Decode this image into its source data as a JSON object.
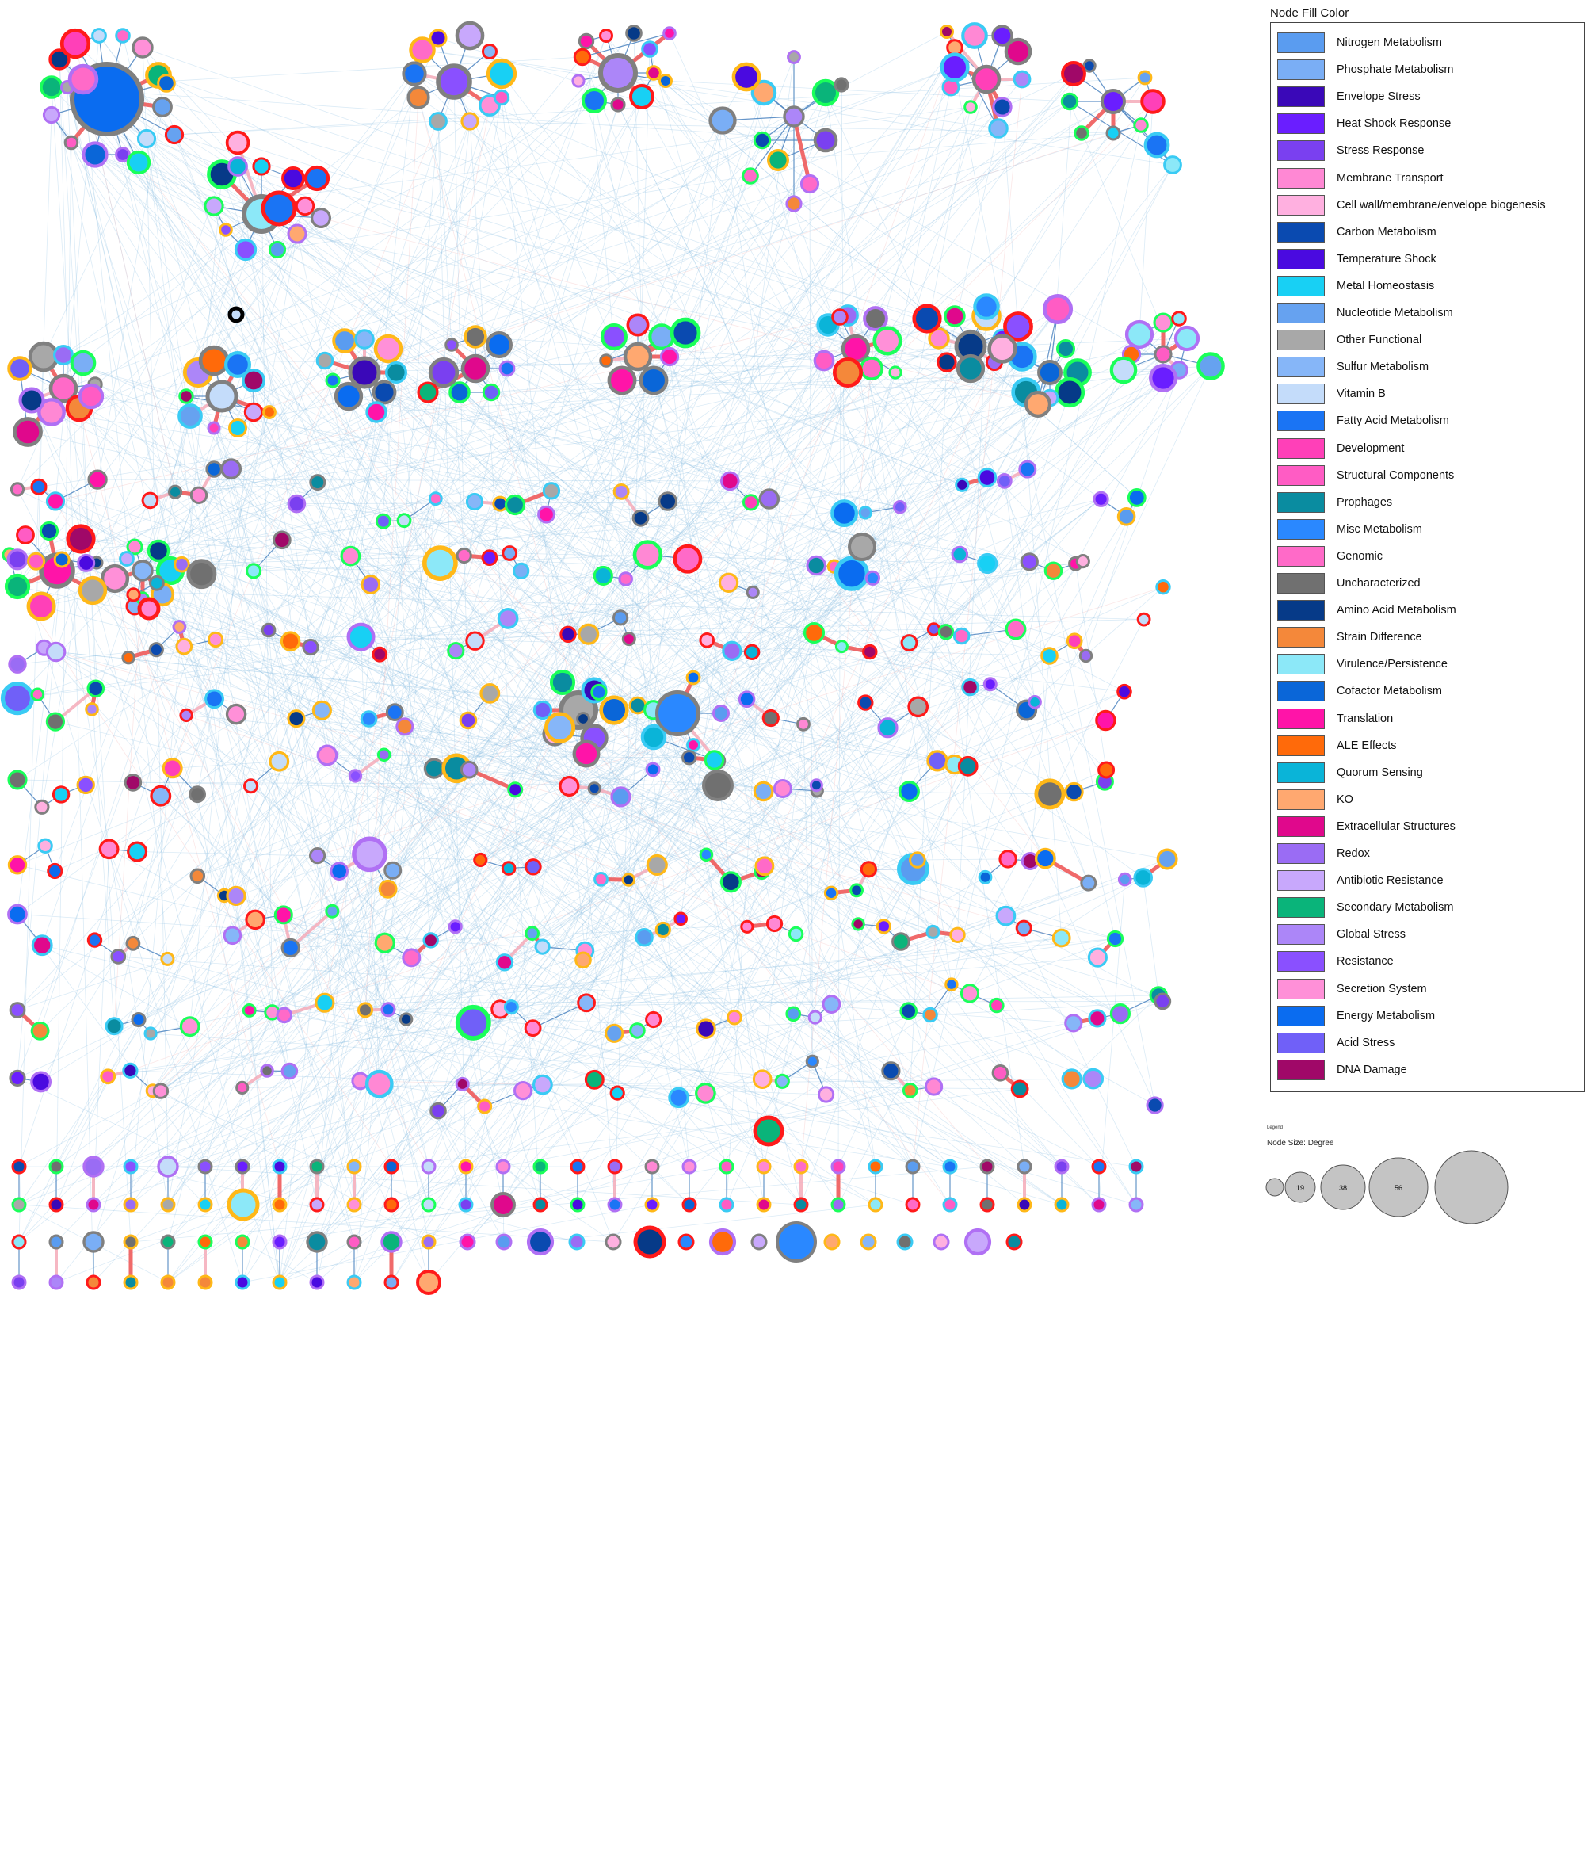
{
  "legend": {
    "title": "Node Fill Color",
    "items": [
      {
        "label": "Nitrogen Metabolism",
        "color": "#5a9cf0"
      },
      {
        "label": "Phosphate Metabolism",
        "color": "#7aaef5"
      },
      {
        "label": "Envelope Stress",
        "color": "#3a08b8"
      },
      {
        "label": "Heat Shock Response",
        "color": "#6a1eff"
      },
      {
        "label": "Stress Response",
        "color": "#7a40f0"
      },
      {
        "label": "Membrane Transport",
        "color": "#ff88d4"
      },
      {
        "label": "Cell wall/membrane/envelope biogenesis",
        "color": "#ffb0e0"
      },
      {
        "label": "Carbon Metabolism",
        "color": "#0a4ab0"
      },
      {
        "label": "Temperature Shock",
        "color": "#4a0ae0"
      },
      {
        "label": "Metal Homeostasis",
        "color": "#18d0f4"
      },
      {
        "label": "Nucleotide Metabolism",
        "color": "#66a2f0"
      },
      {
        "label": "Other Functional",
        "color": "#a8a8a8"
      },
      {
        "label": "Sulfur Metabolism",
        "color": "#86b6f8"
      },
      {
        "label": "Vitamin B",
        "color": "#c4dcfa"
      },
      {
        "label": "Fatty Acid Metabolism",
        "color": "#1a74f4"
      },
      {
        "label": "Development",
        "color": "#ff40b8"
      },
      {
        "label": "Structural Components",
        "color": "#ff5cc4"
      },
      {
        "label": "Prophages",
        "color": "#0a8ca0"
      },
      {
        "label": "Misc Metabolism",
        "color": "#2a88ff"
      },
      {
        "label": "Genomic",
        "color": "#ff6ac8"
      },
      {
        "label": "Uncharacterized",
        "color": "#707070"
      },
      {
        "label": "Amino Acid Metabolism",
        "color": "#063a88"
      },
      {
        "label": "Strain Difference",
        "color": "#f4883a"
      },
      {
        "label": "Virulence/Persistence",
        "color": "#8ce8f8"
      },
      {
        "label": "Cofactor Metabolism",
        "color": "#0a66d8"
      },
      {
        "label": "Translation",
        "color": "#ff14a8"
      },
      {
        "label": "ALE Effects",
        "color": "#ff6a0a"
      },
      {
        "label": "Quorum Sensing",
        "color": "#0ab4d8"
      },
      {
        "label": "KO",
        "color": "#ffa870"
      },
      {
        "label": "Extracellular Structures",
        "color": "#e0088c"
      },
      {
        "label": "Redox",
        "color": "#9a6cf4"
      },
      {
        "label": "Antibiotic Resistance",
        "color": "#c8a8fc"
      },
      {
        "label": "Secondary Metabolism",
        "color": "#0ab47a"
      },
      {
        "label": "Global Stress",
        "color": "#ac86f8"
      },
      {
        "label": "Resistance",
        "color": "#8a50ff"
      },
      {
        "label": "Secretion System",
        "color": "#ff90d8"
      },
      {
        "label": "Energy Metabolism",
        "color": "#0a6cf0"
      },
      {
        "label": "Acid Stress",
        "color": "#7060f8"
      },
      {
        "label": "DNA Damage",
        "color": "#a00868"
      }
    ]
  },
  "size_legend": {
    "caption": "Legend",
    "title": "Node Size: Degree",
    "values": [
      "",
      "19",
      "38",
      "56",
      ""
    ]
  },
  "border_colors": [
    "#1aff5a",
    "#ffb818",
    "#ff1a1a",
    "#3acbf4",
    "#b070f4",
    "#808080"
  ]
}
